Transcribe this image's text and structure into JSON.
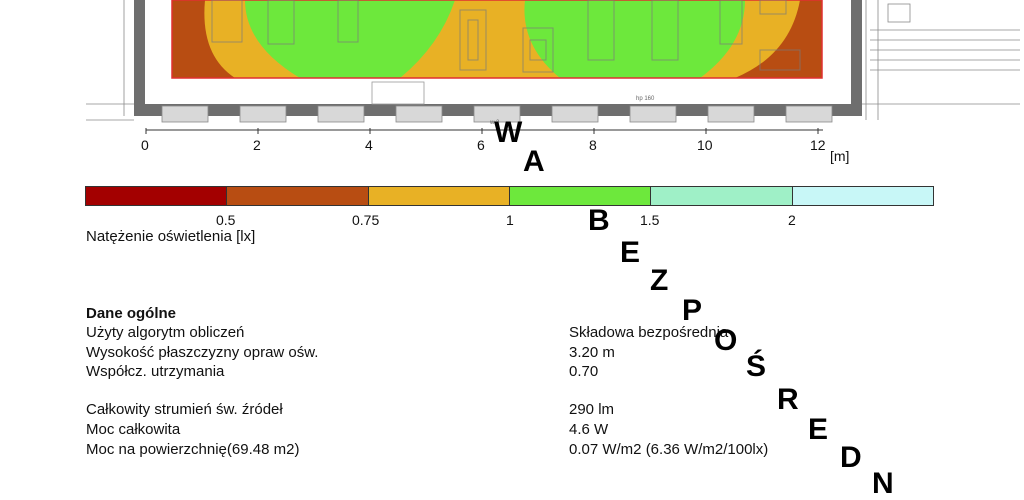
{
  "ruler": {
    "ticks": [
      "0",
      "2",
      "4",
      "6",
      "8",
      "10",
      "12"
    ],
    "unit": "[m]"
  },
  "plan_labels": {
    "hp": "hp 160",
    "window": "w 2"
  },
  "legend": {
    "colors": [
      "#a30000",
      "#b84d12",
      "#e8b125",
      "#6de83c",
      "#9ff0c7",
      "#c8f7f7"
    ],
    "labels": [
      "0.5",
      "0.75",
      "1",
      "1.5",
      "2"
    ],
    "title": "Natężenie oświetlenia [lx]"
  },
  "general": {
    "heading": "Dane ogólne",
    "rows": [
      {
        "label": "Użyty algorytm obliczeń",
        "value": "Składowa bezpośrednia"
      },
      {
        "label": "Wysokość płaszczyzny opraw ośw.",
        "value": "3.20 m"
      },
      {
        "label": "Współcz. utrzymania",
        "value": "0.70"
      },
      {
        "label": "Całkowity strumień św. źródeł",
        "value": "290 lm"
      },
      {
        "label": "Moc całkowita",
        "value": "4.6 W"
      },
      {
        "label": "Moc na powierzchnię(69.48 m2)",
        "value": "0.07 W/m2 (6.36 W/m2/100lx)"
      }
    ]
  },
  "stamp_letters": [
    "W",
    "A",
    "B",
    "E",
    "Z",
    "P",
    "O",
    "Ś",
    "R",
    "E",
    "D",
    "N"
  ]
}
